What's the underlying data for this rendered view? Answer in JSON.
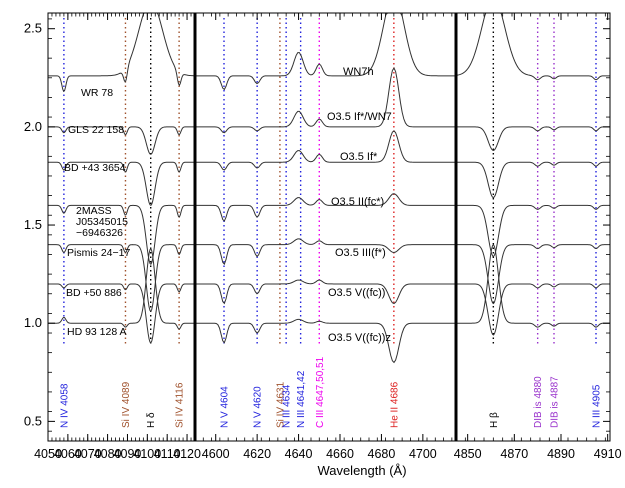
{
  "chart_data": {
    "type": "line",
    "xlabel": "Wavelength (Å)",
    "ylim": [
      0.4,
      2.58
    ],
    "y_ticks": [
      "0.5",
      "1.0",
      "1.5",
      "2.0",
      "2.5"
    ],
    "y_tick_values": [
      0.5,
      1.0,
      1.5,
      2.0,
      2.5
    ],
    "panels": [
      {
        "xlim": [
          4050,
          4124
        ],
        "x_ticks": [
          4050,
          4060,
          4070,
          4080,
          4090,
          4100,
          4110,
          4120
        ],
        "x_tick_labels": [
          "4050",
          "4060",
          "4070",
          "4080",
          "4090",
          "4100",
          "4110",
          "4120"
        ]
      },
      {
        "xlim": [
          4590,
          4716
        ],
        "x_ticks": [
          4600,
          4620,
          4640,
          4660,
          4680,
          4700
        ],
        "x_tick_labels": [
          "4600",
          "4620",
          "4640",
          "4660",
          "4680",
          "4700"
        ]
      },
      {
        "xlim": [
          4845,
          4911
        ],
        "x_ticks": [
          4850,
          4870,
          4890,
          4910
        ],
        "x_tick_labels": [
          "4850",
          "4870",
          "4890",
          "4910"
        ]
      }
    ],
    "series": [
      {
        "star": "WR 78",
        "spectral_type": "WN7h",
        "offset": 2.26
      },
      {
        "star": "GLS 22 158",
        "spectral_type": "O3.5 If*/WN7",
        "offset": 2.0
      },
      {
        "star": "BD +43 3654",
        "spectral_type": "O3.5 If*",
        "offset": 1.82
      },
      {
        "star": "2MASS",
        "star_line2": "J05345015",
        "star_line3": "−6946326",
        "spectral_type": "O3.5 II(fc*)",
        "offset": 1.6
      },
      {
        "star": "Pismis 24−17",
        "spectral_type": "O3.5 III(f*)",
        "offset": 1.4
      },
      {
        "star": "BD +50 886",
        "spectral_type": "O3.5 V((fc))",
        "offset": 1.2
      },
      {
        "star": "HD 93 128 A",
        "spectral_type": "O3.5 V((fc))z",
        "offset": 1.0
      }
    ],
    "line_ids": [
      {
        "label": "N IV 4058",
        "wavelength": 4058,
        "panel": 0,
        "color": "#2222dd"
      },
      {
        "label": "Si IV 4089",
        "wavelength": 4089,
        "panel": 0,
        "color": "#a0522d"
      },
      {
        "label": "H δ",
        "wavelength": 4101.7,
        "panel": 0,
        "color": "#000000"
      },
      {
        "label": "Si IV 4116",
        "wavelength": 4116,
        "panel": 0,
        "color": "#a0522d"
      },
      {
        "label": "N V 4604",
        "wavelength": 4604,
        "panel": 1,
        "color": "#2222dd"
      },
      {
        "label": "N V 4620",
        "wavelength": 4620,
        "panel": 1,
        "color": "#2222dd"
      },
      {
        "label": "Si IV 4631",
        "wavelength": 4631,
        "panel": 1,
        "color": "#a0522d"
      },
      {
        "label": "N III 4634",
        "wavelength": 4634,
        "panel": 1,
        "color": "#2222dd"
      },
      {
        "label": "N III 4641,42",
        "wavelength": 4641,
        "panel": 1,
        "color": "#2222dd"
      },
      {
        "label": "C III 4647,50,51",
        "wavelength": 4650,
        "panel": 1,
        "color": "#ee00ee"
      },
      {
        "label": "He II 4686",
        "wavelength": 4686,
        "panel": 1,
        "color": "#dd2222"
      },
      {
        "label": "H β",
        "wavelength": 4861,
        "panel": 2,
        "color": "#000000"
      },
      {
        "label": "DIB is 4880",
        "wavelength": 4880,
        "panel": 2,
        "color": "#9932cc"
      },
      {
        "label": "DIB is 4887",
        "wavelength": 4887,
        "panel": 2,
        "color": "#9932cc"
      },
      {
        "label": "N III 4905",
        "wavelength": 4905,
        "panel": 2,
        "color": "#2222dd"
      }
    ]
  }
}
